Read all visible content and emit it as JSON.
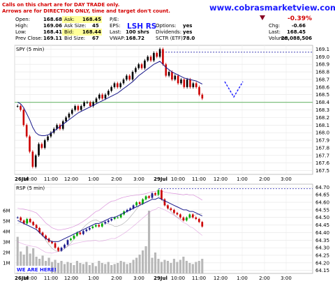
{
  "notice": {
    "line1": "Calls on this chart are for DAY TRADE only.",
    "line2": "Arrows are for DIRECTION ONLY, time and target don't count."
  },
  "site": "www.cobrasmarketview.com",
  "ticker_title": "LSH RS",
  "watermark": "WE ARE HERE!",
  "header": {
    "open_label": "Open:",
    "open": "168.68",
    "high_label": "High:",
    "high": "169.06",
    "low_label": "Low:",
    "low": "168.41",
    "prev_close_label": "Prev Close:",
    "prev_close": "169.11",
    "ask_label": "Ask:",
    "ask": "168.45",
    "ask_size_label": "Ask Size:",
    "ask_size": "45",
    "bid_label": "Bid:",
    "bid": "168.44",
    "bid_size_label": "Bid Size:",
    "bid_size": "67",
    "pe_label": "P/E:",
    "eps_label": "EPS:",
    "last_label": "Last:",
    "last_shrs": "100 shrs",
    "vwap_label": "VWAP:",
    "vwap": "168.72",
    "options_label": "Options:",
    "options": "yes",
    "dividends_label": "Dividends:",
    "dividends": "yes",
    "sctr_label": "SCTR (ETF):",
    "sctr": "78.0",
    "pct_change": "-0.39%",
    "chg_label": "Chg:",
    "chg": "-0.66",
    "last_price_label": "Last:",
    "last_price": "168.45",
    "volume_label": "Volume:",
    "volume": "28,088,506"
  },
  "colors": {
    "up": "#00aa00",
    "down": "#cc0000",
    "ma": "#1a1a8c",
    "support": "#7fbf7f",
    "resistance": "#2222aa",
    "arrow": "#1a1aff",
    "ask_bid_bg": "#ffff99",
    "rsp_ma": "#cc66cc"
  },
  "chart_data": [
    {
      "type": "candlestick",
      "panel_label": "SPY (5 min)",
      "ylim": [
        167.45,
        169.15
      ],
      "y_ticks": [
        "169.1",
        "169.0",
        "168.9",
        "168.8",
        "168.7",
        "168.6",
        "168.5",
        "168.4",
        "168.3",
        "168.2",
        "168.1",
        "168.0",
        "167.9",
        "167.8",
        "167.7",
        "167.6",
        "167.5"
      ],
      "x_ticks": [
        "26Jul",
        "10:00",
        "11:00",
        "12:00",
        "1:00",
        "2:00",
        "3:00",
        "29Jul",
        "10:00",
        "11:00",
        "12:00",
        "1:00",
        "2:00",
        "3:00"
      ],
      "closes": [
        168.35,
        168.3,
        168.1,
        167.95,
        167.75,
        167.55,
        167.7,
        167.85,
        167.8,
        167.9,
        167.95,
        168.0,
        168.05,
        168.1,
        168.05,
        168.15,
        168.2,
        168.25,
        168.3,
        168.35,
        168.3,
        168.35,
        168.4,
        168.4,
        168.35,
        168.4,
        168.45,
        168.5,
        168.45,
        168.5,
        168.55,
        168.6,
        168.65,
        168.6,
        168.65,
        168.7,
        168.75,
        168.7,
        168.8,
        168.85,
        168.9,
        168.85,
        168.95,
        169.0,
        168.95,
        169.05,
        169.0,
        169.1,
        168.9,
        168.75,
        168.8,
        168.7,
        168.75,
        168.65,
        168.7,
        168.6,
        168.7,
        168.6,
        168.65,
        168.6,
        168.5,
        168.45
      ],
      "moving_average": [
        168.4,
        168.38,
        168.33,
        168.25,
        168.17,
        168.07,
        168.0,
        167.97,
        167.96,
        167.96,
        167.97,
        167.99,
        168.02,
        168.05,
        168.08,
        168.11,
        168.14,
        168.17,
        168.2,
        168.23,
        168.26,
        168.28,
        168.3,
        168.32,
        168.34,
        168.36,
        168.38,
        168.4,
        168.42,
        168.44,
        168.46,
        168.48,
        168.5,
        168.52,
        168.55,
        168.58,
        168.61,
        168.64,
        168.67,
        168.71,
        168.75,
        168.78,
        168.81,
        168.84,
        168.87,
        168.9,
        168.92,
        168.94,
        168.9,
        168.86,
        168.83,
        168.8,
        168.78,
        168.76,
        168.74,
        168.72,
        168.71,
        168.7,
        168.69,
        168.68,
        168.66,
        168.64
      ],
      "support_level": 168.4,
      "resistance_level": 169.06
    },
    {
      "type": "candlestick",
      "panel_label": "RSP (5 min)",
      "ylim": [
        64.13,
        64.72
      ],
      "y_ticks": [
        "64.70",
        "64.65",
        "64.60",
        "64.55",
        "64.50",
        "64.45",
        "64.40",
        "64.35",
        "64.30",
        "64.25",
        "64.20",
        "64.15"
      ],
      "volume_ticks": [
        "6M",
        "5M",
        "4M",
        "3M",
        "2M",
        "1M"
      ],
      "x_ticks": [
        "26Jul",
        "10:00",
        "11:00",
        "12:00",
        "1:00",
        "2:00",
        "3:00",
        "29Jul",
        "10:00",
        "11:00",
        "12:00",
        "1:00",
        "2:00",
        "3:00"
      ],
      "closes": [
        64.5,
        64.48,
        64.46,
        64.49,
        64.47,
        64.45,
        64.43,
        64.4,
        64.38,
        64.36,
        64.34,
        64.33,
        64.3,
        64.28,
        64.3,
        64.32,
        64.35,
        64.36,
        64.38,
        64.4,
        64.39,
        64.41,
        64.42,
        64.43,
        64.44,
        64.45,
        64.44,
        64.46,
        64.47,
        64.48,
        64.49,
        64.5,
        64.5,
        64.52,
        64.54,
        64.55,
        64.56,
        64.58,
        64.6,
        64.59,
        64.62,
        64.64,
        64.63,
        64.66,
        64.65,
        64.68,
        64.62,
        64.58,
        64.56,
        64.55,
        64.53,
        64.52,
        64.5,
        64.48,
        64.5,
        64.52,
        64.5,
        64.49,
        64.47,
        64.44
      ],
      "moving_average": [
        64.48,
        64.47,
        64.46,
        64.45,
        64.44,
        64.43,
        64.42,
        64.4,
        64.38,
        64.36,
        64.35,
        64.34,
        64.34,
        64.34,
        64.35,
        64.36,
        64.37,
        64.38,
        64.39,
        64.4,
        64.41,
        64.42,
        64.43,
        64.44,
        64.45,
        64.46,
        64.46,
        64.47,
        64.48,
        64.49,
        64.5,
        64.5,
        64.51,
        64.52,
        64.53,
        64.54,
        64.55,
        64.56,
        64.57,
        64.58,
        64.59,
        64.6,
        64.61,
        64.62,
        64.62,
        64.63,
        64.62,
        64.61,
        64.6,
        64.59,
        64.58,
        64.57,
        64.56,
        64.55,
        64.55,
        64.54,
        64.54,
        64.53,
        64.52,
        64.51
      ],
      "volume_millions": [
        3.5,
        2.1,
        1.8,
        2.6,
        1.9,
        2.4,
        1.6,
        1.4,
        1.7,
        1.2,
        1.5,
        1.1,
        1.3,
        1.0,
        1.2,
        0.9,
        1.1,
        1.0,
        0.8,
        1.2,
        1.0,
        0.9,
        1.1,
        0.8,
        1.0,
        0.7,
        1.2,
        1.0,
        0.9,
        1.1,
        0.8,
        0.9,
        1.0,
        1.2,
        1.1,
        0.9,
        1.0,
        1.3,
        1.5,
        1.8,
        2.2,
        2.6,
        6.0,
        1.5,
        2.0,
        1.4,
        1.1,
        1.3,
        1.2,
        1.0,
        1.4,
        1.1,
        1.3,
        1.6,
        1.2,
        1.0,
        0.9,
        1.1,
        1.2,
        1.4
      ],
      "resistance_level": 64.69
    }
  ]
}
